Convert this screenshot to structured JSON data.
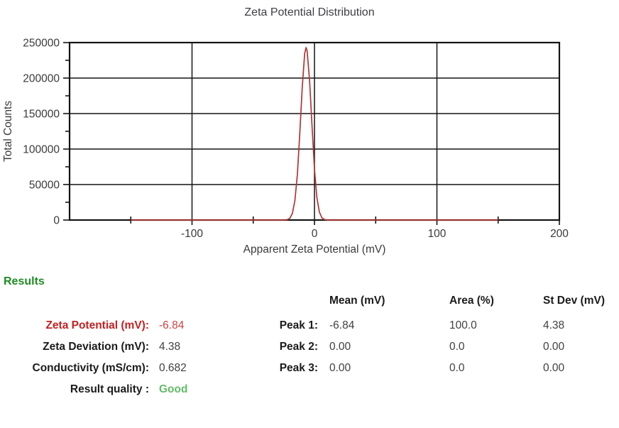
{
  "title": "Zeta Potential Distribution",
  "chart_data": {
    "type": "line",
    "title": "Zeta Potential Distribution",
    "xlabel": "Apparent Zeta Potential (mV)",
    "ylabel": "Total Counts",
    "xlim": [
      -200,
      200
    ],
    "ylim": [
      0,
      250000
    ],
    "x_major_ticks": [
      -100,
      0,
      100,
      200
    ],
    "x_minor_ticks": [
      -150,
      -50,
      50,
      150
    ],
    "y_major_ticks": [
      0,
      50000,
      100000,
      150000,
      200000,
      250000
    ],
    "y_minor_ticks": [
      25000,
      75000,
      125000,
      175000,
      225000
    ],
    "grid": true,
    "legend": "none",
    "line_color": "#b13434",
    "axis_color": "#141414",
    "text_color": "#3a3a3a",
    "series": [
      {
        "name": "zeta-distribution",
        "points": [
          [
            -150,
            0
          ],
          [
            -30,
            0
          ],
          [
            -26,
            0
          ],
          [
            -24,
            100
          ],
          [
            -22,
            600
          ],
          [
            -20,
            2700
          ],
          [
            -18,
            9500
          ],
          [
            -16,
            27300
          ],
          [
            -14,
            63900
          ],
          [
            -12,
            121400
          ],
          [
            -10,
            187300
          ],
          [
            -8,
            234600
          ],
          [
            -6.84,
            243000
          ],
          [
            -6,
            238600
          ],
          [
            -4,
            197000
          ],
          [
            -2,
            131900
          ],
          [
            0,
            71800
          ],
          [
            2,
            31700
          ],
          [
            4,
            11300
          ],
          [
            6,
            3300
          ],
          [
            8,
            800
          ],
          [
            10,
            100
          ],
          [
            12,
            0
          ],
          [
            150,
            0
          ]
        ]
      }
    ],
    "peak_summary": {
      "mean_mV": -6.84,
      "max_counts": 243000,
      "st_dev_mV": 4.38
    }
  },
  "results": {
    "heading": "Results",
    "fields": [
      {
        "label": "Zeta Potential (mV):",
        "value": "-6.84"
      },
      {
        "label": "Zeta Deviation (mV):",
        "value": "4.38"
      },
      {
        "label": "Conductivity (mS/cm):",
        "value": "0.682"
      },
      {
        "label": "Result quality :",
        "value": "Good"
      }
    ],
    "peaks_table": {
      "columns": [
        "Mean (mV)",
        "Area (%)",
        "St Dev (mV)"
      ],
      "rows": [
        {
          "label": "Peak 1:",
          "mean": "-6.84",
          "area": "100.0",
          "stdev": "4.38"
        },
        {
          "label": "Peak 2:",
          "mean": "0.00",
          "area": "0.0",
          "stdev": "0.00"
        },
        {
          "label": "Peak 3:",
          "mean": "0.00",
          "area": "0.0",
          "stdev": "0.00"
        }
      ]
    }
  },
  "colors": {
    "heading_green": "#1f8b24",
    "good_green": "#63bb68",
    "alert_red": "#c42020",
    "curve_red": "#b13434"
  }
}
